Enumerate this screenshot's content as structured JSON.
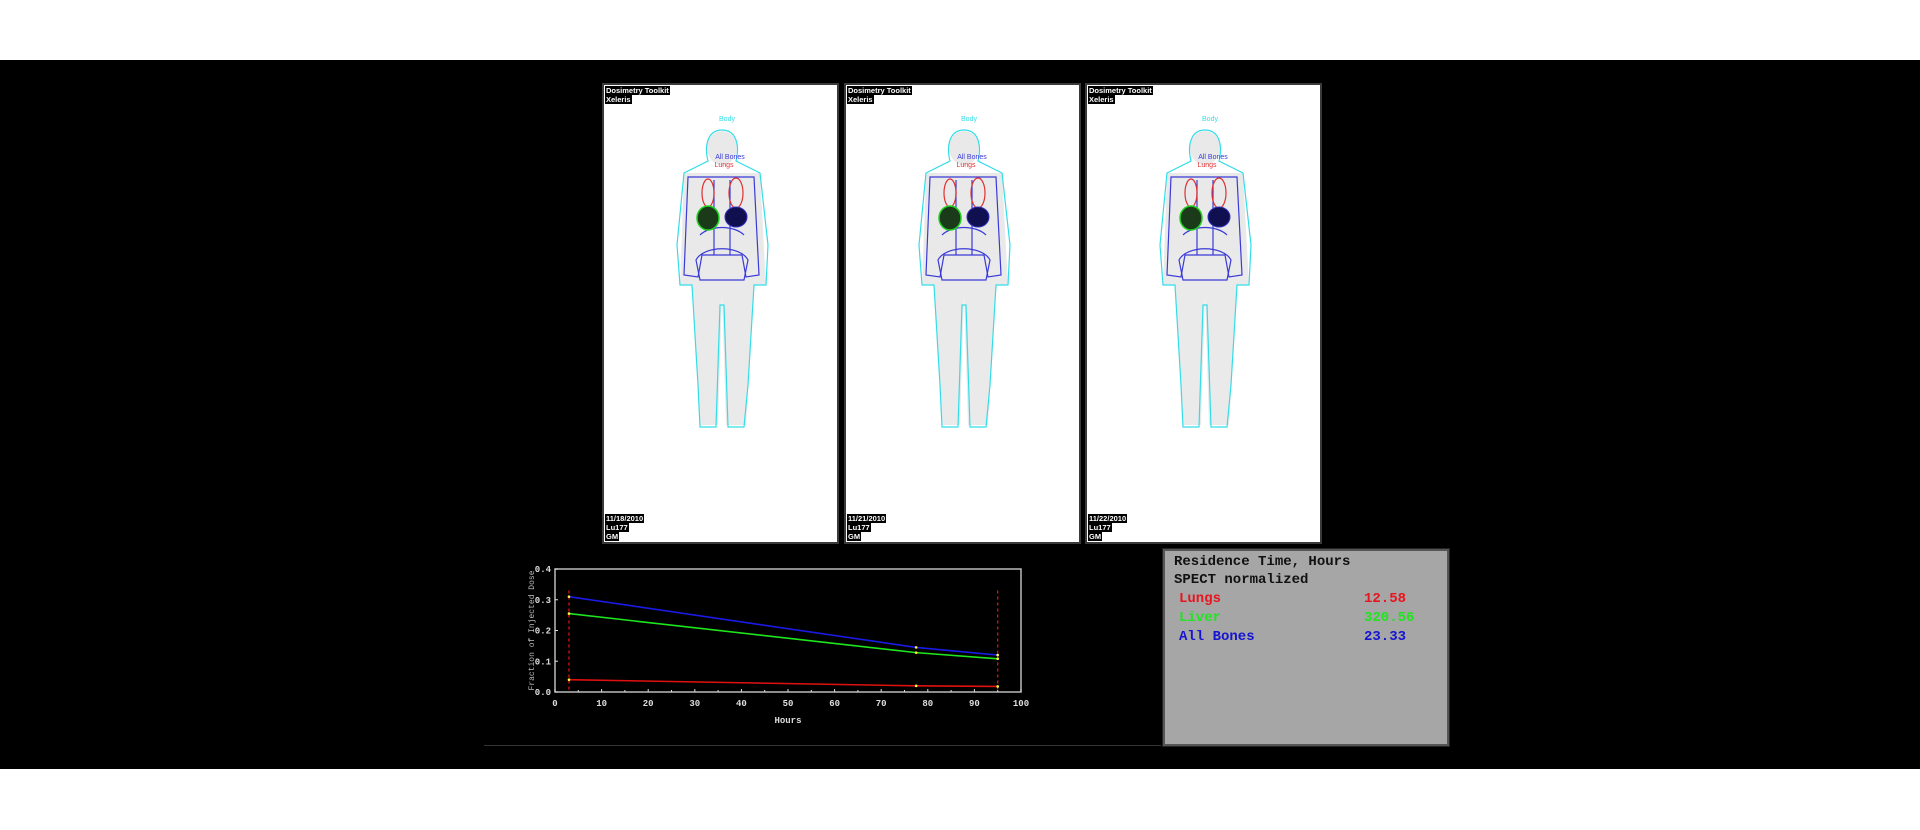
{
  "panels": [
    {
      "app": "Dosimetry Toolkit",
      "vendor": "Xeleris",
      "date": "11/18/2010",
      "isotope": "Lu177",
      "initials": "GM",
      "labels": {
        "body": "Body",
        "bones": "All Bones",
        "lungs": "Lungs"
      }
    },
    {
      "app": "Dosimetry Toolkit",
      "vendor": "Xeleris",
      "date": "11/21/2010",
      "isotope": "Lu177",
      "initials": "GM",
      "labels": {
        "body": "Body",
        "bones": "All Bones",
        "lungs": "Lungs"
      }
    },
    {
      "app": "Dosimetry Toolkit",
      "vendor": "Xeleris",
      "date": "11/22/2010",
      "isotope": "Lu177",
      "initials": "GM",
      "labels": {
        "body": "Body",
        "bones": "All Bones",
        "lungs": "Lungs"
      }
    }
  ],
  "residence": {
    "title": "Residence Time, Hours",
    "subtitle": "SPECT normalized",
    "rows": [
      {
        "organ": "Lungs",
        "value": "12.58",
        "color": "#e8141e"
      },
      {
        "organ": "Liver",
        "value": "320.56",
        "color": "#1ee61e"
      },
      {
        "organ": "All Bones",
        "value": "23.33",
        "color": "#1414d2"
      }
    ]
  },
  "chart_data": {
    "type": "line",
    "xlabel": "Hours",
    "ylabel": "Fraction of Injected Dose",
    "xlim": [
      0,
      100
    ],
    "ylim": [
      0,
      0.4
    ],
    "xticks": [
      "0",
      "10",
      "20",
      "30",
      "40",
      "50",
      "60",
      "70",
      "80",
      "90",
      "100"
    ],
    "yticks": [
      "0.0",
      "0.1",
      "0.2",
      "0.3",
      "0.4"
    ],
    "x": [
      3,
      77.5,
      95
    ],
    "series": [
      {
        "color": "#1a1ae6",
        "values": [
          0.31,
          0.145,
          0.12
        ]
      },
      {
        "color": "#1ee61e",
        "values": [
          0.255,
          0.128,
          0.108
        ]
      },
      {
        "color": "#e01010",
        "values": [
          0.04,
          0.02,
          0.018
        ]
      }
    ],
    "markers": [
      3,
      95
    ],
    "marker_color": "#e01010",
    "point_color": "#ffff40",
    "grid": false,
    "background": "#000000"
  }
}
